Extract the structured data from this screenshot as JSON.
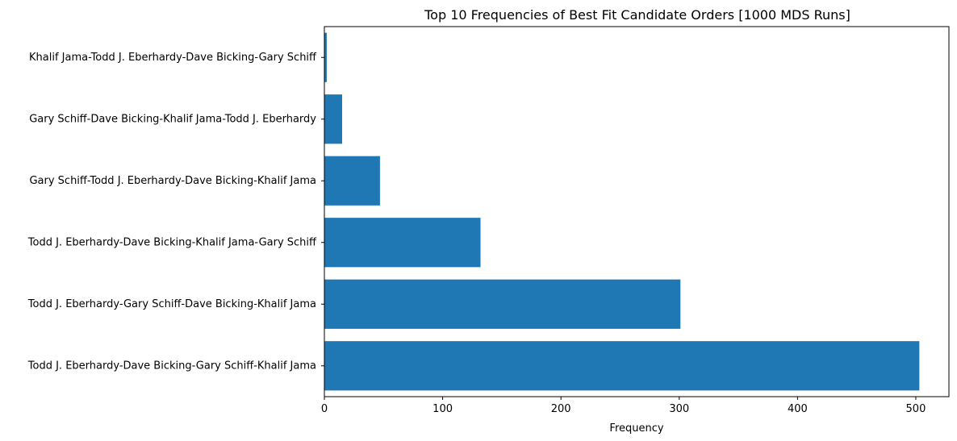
{
  "chart_data": {
    "type": "bar",
    "orientation": "horizontal",
    "title": "Top 10 Frequencies of Best Fit Candidate Orders [1000 MDS Runs]",
    "xlabel": "Frequency",
    "ylabel": "",
    "xlim": [
      0,
      528
    ],
    "xticks": [
      0,
      100,
      200,
      300,
      400,
      500
    ],
    "categories": [
      "Todd J. Eberhardy-Dave Bicking-Gary Schiff-Khalif Jama",
      "Todd J. Eberhardy-Gary Schiff-Dave Bicking-Khalif Jama",
      "Todd J. Eberhardy-Dave Bicking-Khalif Jama-Gary Schiff",
      "Gary Schiff-Todd J. Eberhardy-Dave Bicking-Khalif Jama",
      "Gary Schiff-Dave Bicking-Khalif Jama-Todd J. Eberhardy",
      "Khalif Jama-Todd J. Eberhardy-Dave Bicking-Gary Schiff"
    ],
    "values": [
      503,
      301,
      132,
      47,
      15,
      2
    ],
    "bar_color": "#1f77b4",
    "grid": false,
    "legend": "none"
  }
}
